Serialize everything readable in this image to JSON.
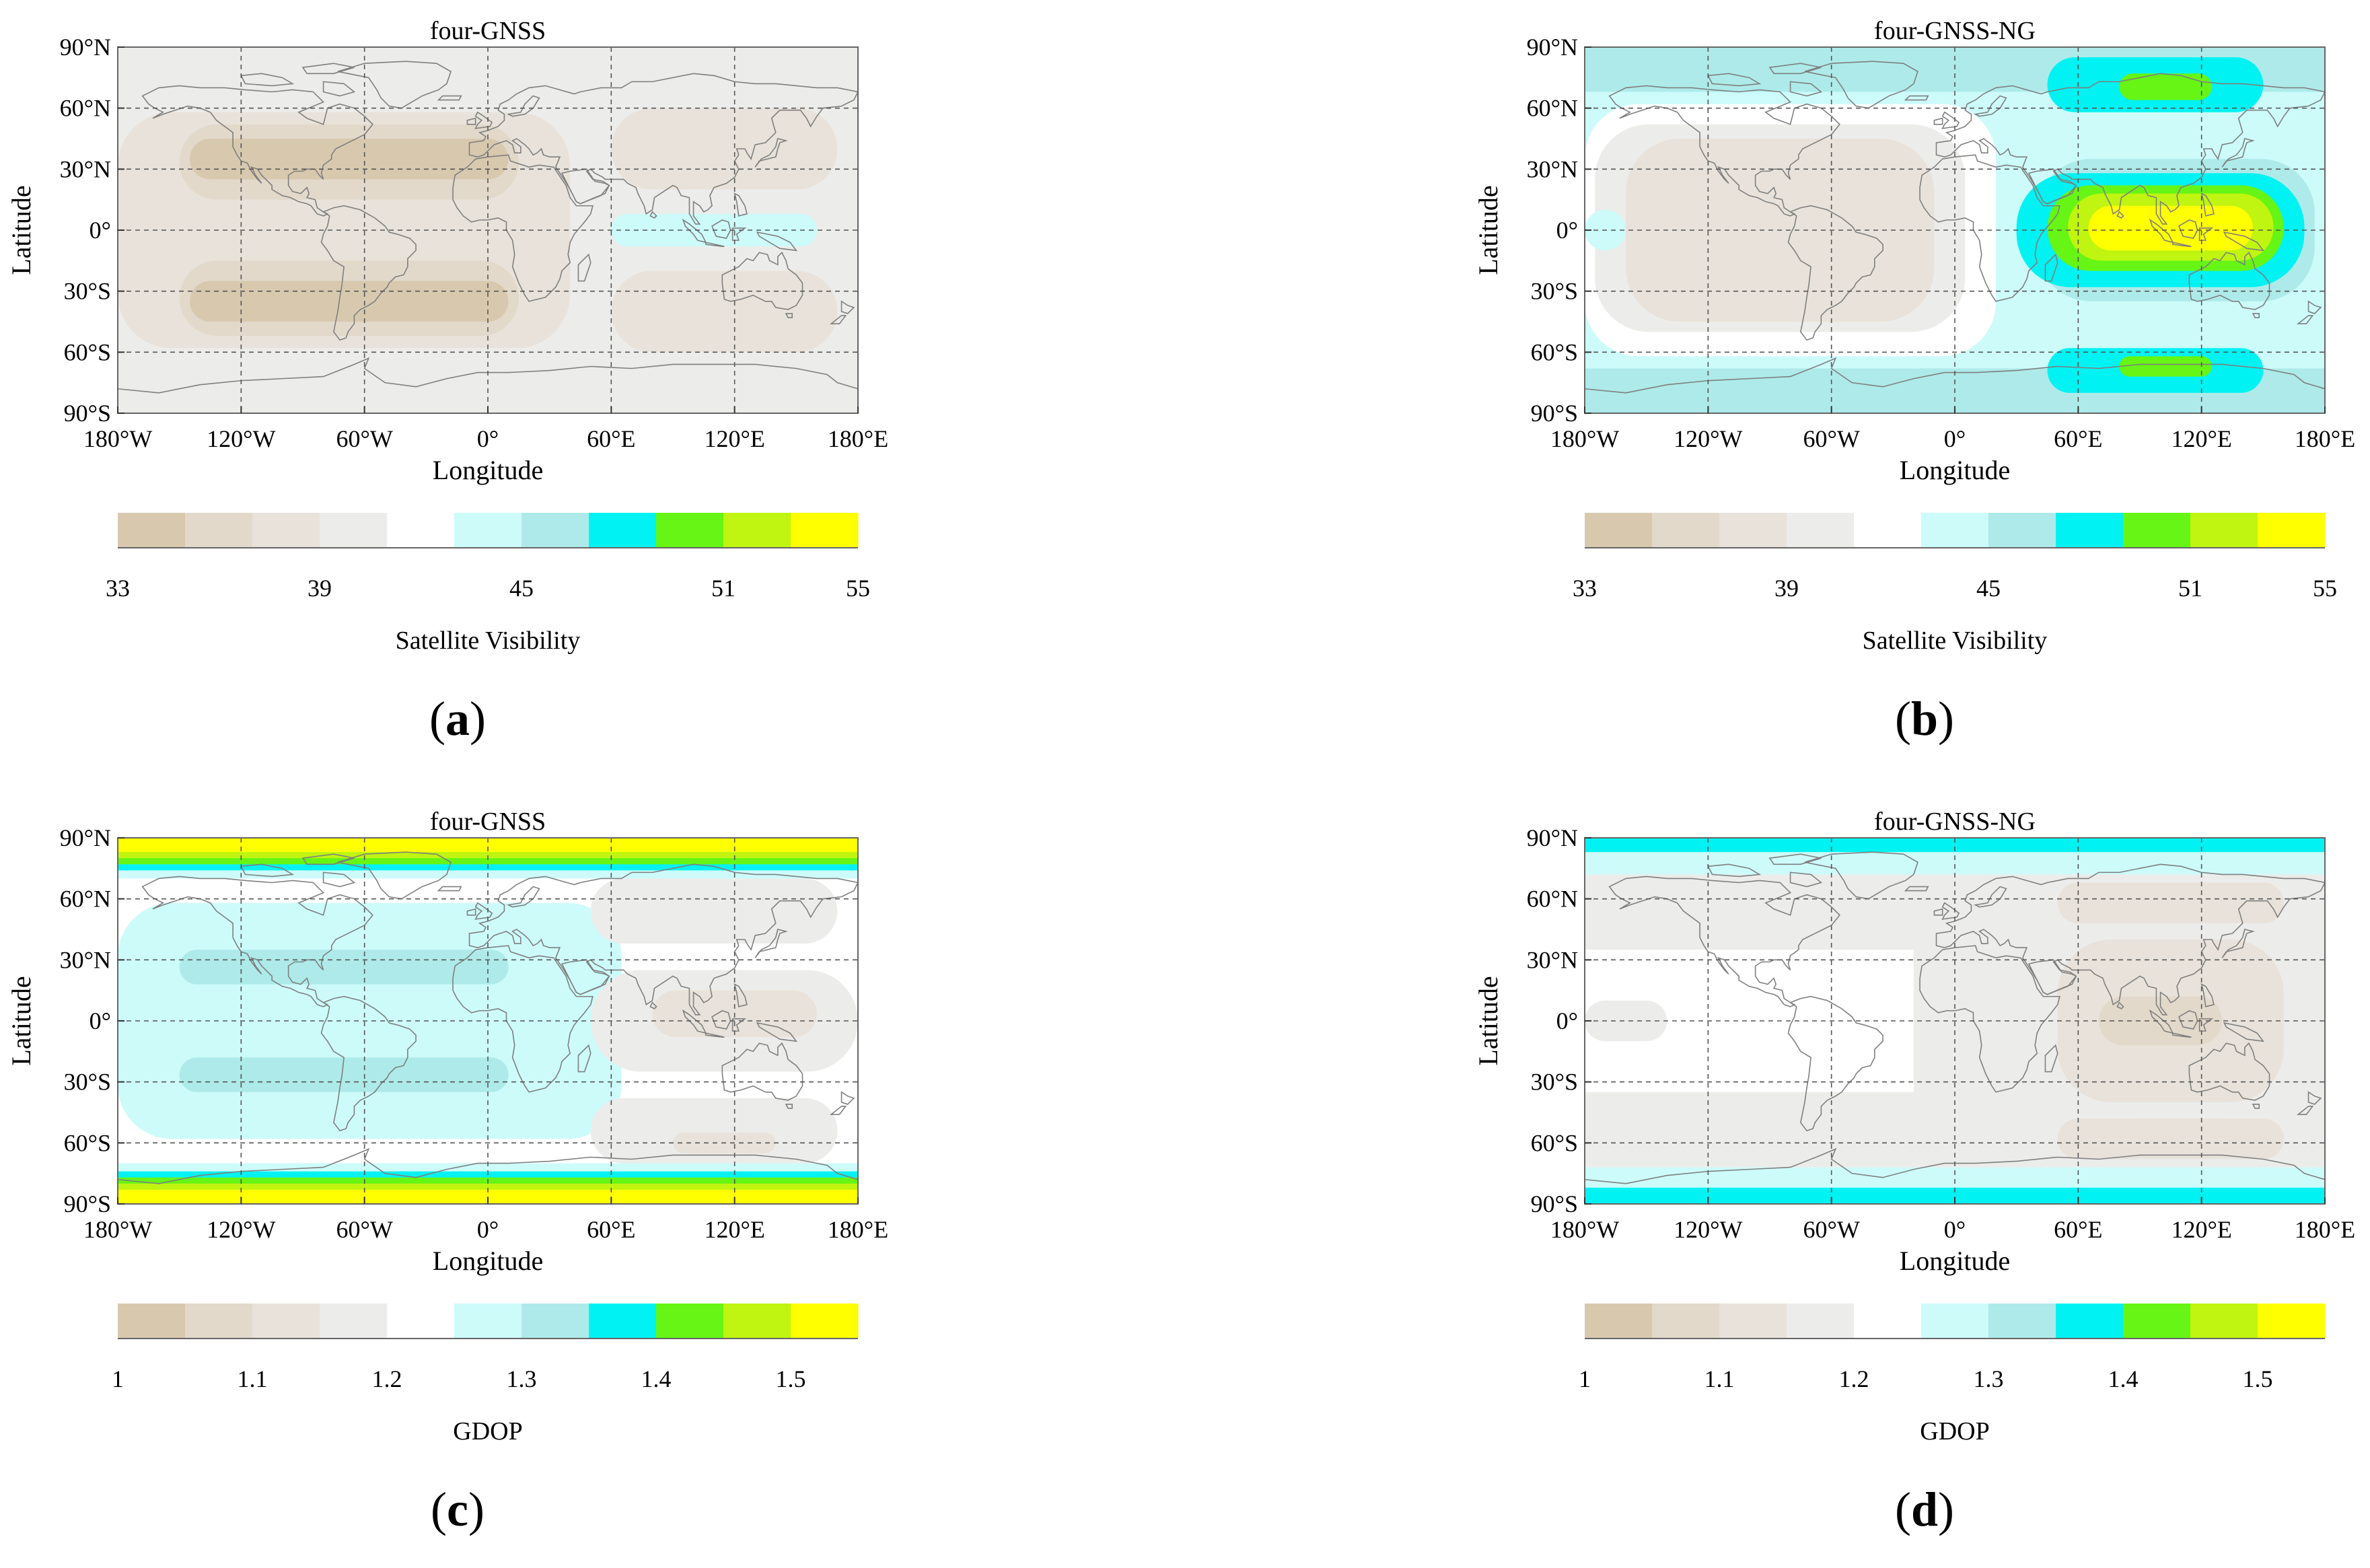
{
  "figure": {
    "panels_layout": "2x2",
    "palette": [
      "#d8c9ae",
      "#e2d9cb",
      "#e8e2da",
      "#ececea",
      "#ffffff",
      "#ccfbfa",
      "#aeeaea",
      "#00f2f2",
      "#66f514",
      "#bff510",
      "#ffff00"
    ]
  },
  "chart_data": [
    {
      "id": "a",
      "panel_label": "(a)",
      "type": "heatmap",
      "title": "four-GNSS",
      "xlabel": "Longitude",
      "ylabel": "Latitude",
      "xlim": [
        -180,
        180
      ],
      "ylim": [
        -90,
        90
      ],
      "xticks": [
        -180,
        -120,
        -60,
        0,
        60,
        120,
        180
      ],
      "xtick_labels": [
        "180°W",
        "120°W",
        "60°W",
        "0°",
        "60°E",
        "120°E",
        "180°E"
      ],
      "yticks": [
        90,
        60,
        30,
        0,
        -30,
        -60,
        -90
      ],
      "ytick_labels": [
        "90°N",
        "60°N",
        "30°N",
        "0°",
        "30°S",
        "60°S",
        "90°S"
      ],
      "grid": true,
      "colorbar": {
        "label": "Satellite Visibility",
        "levels": [
          33,
          35,
          37,
          39,
          41,
          43,
          45,
          47,
          49,
          51,
          53,
          55
        ],
        "tick_values": [
          33,
          39,
          45,
          51,
          55
        ],
        "tick_labels": [
          "33",
          "39",
          "45",
          "51",
          "55"
        ]
      },
      "base_value": 40,
      "regions": [
        {
          "lon": [
            -180,
            45
          ],
          "lat": [
            -90,
            90
          ],
          "value": 39.5
        },
        {
          "lon": [
            -180,
            40
          ],
          "lat": [
            -58,
            58
          ],
          "value": 38
        },
        {
          "lon": [
            -150,
            15
          ],
          "lat": [
            15,
            52
          ],
          "value": 36
        },
        {
          "lon": [
            -150,
            15
          ],
          "lat": [
            -52,
            -15
          ],
          "value": 36
        },
        {
          "lon": [
            -145,
            10
          ],
          "lat": [
            25,
            45
          ],
          "value": 34.8
        },
        {
          "lon": [
            -145,
            10
          ],
          "lat": [
            -45,
            -25
          ],
          "value": 34.8
        },
        {
          "lon": [
            45,
            180
          ],
          "lat": [
            -90,
            -70
          ],
          "value": 40
        },
        {
          "lon": [
            45,
            180
          ],
          "lat": [
            62,
            90
          ],
          "value": 40
        },
        {
          "lon": [
            60,
            170
          ],
          "lat": [
            20,
            60
          ],
          "value": 38
        },
        {
          "lon": [
            60,
            170
          ],
          "lat": [
            -60,
            -20
          ],
          "value": 38
        },
        {
          "lon": [
            60,
            160
          ],
          "lat": [
            -8,
            8
          ],
          "value": 43.5
        }
      ]
    },
    {
      "id": "b",
      "panel_label": "(b)",
      "type": "heatmap",
      "title": "four-GNSS-NG",
      "xlabel": "Longitude",
      "ylabel": "Latitude",
      "xlim": [
        -180,
        180
      ],
      "ylim": [
        -90,
        90
      ],
      "xticks": [
        -180,
        -120,
        -60,
        0,
        60,
        120,
        180
      ],
      "xtick_labels": [
        "180°W",
        "120°W",
        "60°W",
        "0°",
        "60°E",
        "120°E",
        "180°E"
      ],
      "yticks": [
        90,
        60,
        30,
        0,
        -30,
        -60,
        -90
      ],
      "ytick_labels": [
        "90°N",
        "60°N",
        "30°N",
        "0°",
        "30°S",
        "60°S",
        "90°S"
      ],
      "grid": true,
      "colorbar": {
        "label": "Satellite Visibility",
        "levels": [
          33,
          35,
          37,
          39,
          41,
          43,
          45,
          47,
          49,
          51,
          53,
          55
        ],
        "tick_values": [
          33,
          39,
          45,
          51,
          55
        ],
        "tick_labels": [
          "33",
          "39",
          "45",
          "51",
          "55"
        ]
      },
      "base_value": 46,
      "regions": [
        {
          "lon": [
            -180,
            180
          ],
          "lat": [
            -68,
            68
          ],
          "value": 43.5
        },
        {
          "lon": [
            -180,
            20
          ],
          "lat": [
            -62,
            62
          ],
          "value": 41.5
        },
        {
          "lon": [
            -175,
            5
          ],
          "lat": [
            -50,
            52
          ],
          "value": 39.5
        },
        {
          "lon": [
            -160,
            -10
          ],
          "lat": [
            -45,
            45
          ],
          "value": 38
        },
        {
          "lon": [
            -180,
            -160
          ],
          "lat": [
            -10,
            10
          ],
          "value": 43.5
        },
        {
          "lon": [
            25,
            180
          ],
          "lat": [
            -55,
            55
          ],
          "value": 43.5
        },
        {
          "lon": [
            40,
            175
          ],
          "lat": [
            -35,
            35
          ],
          "value": 45.5
        },
        {
          "lon": [
            30,
            170
          ],
          "lat": [
            -28,
            28
          ],
          "value": 47.5
        },
        {
          "lon": [
            45,
            160
          ],
          "lat": [
            -20,
            22
          ],
          "value": 49.5
        },
        {
          "lon": [
            55,
            155
          ],
          "lat": [
            -15,
            18
          ],
          "value": 51.5
        },
        {
          "lon": [
            65,
            145
          ],
          "lat": [
            -10,
            12
          ],
          "value": 53
        },
        {
          "lon": [
            45,
            150
          ],
          "lat": [
            58,
            85
          ],
          "value": 47.5
        },
        {
          "lon": [
            80,
            125
          ],
          "lat": [
            64,
            77
          ],
          "value": 49.5
        },
        {
          "lon": [
            45,
            150
          ],
          "lat": [
            -80,
            -58
          ],
          "value": 47.5
        },
        {
          "lon": [
            80,
            125
          ],
          "lat": [
            -72,
            -62
          ],
          "value": 49.5
        }
      ]
    },
    {
      "id": "c",
      "panel_label": "(c)",
      "type": "heatmap",
      "title": "four-GNSS",
      "xlabel": "Longitude",
      "ylabel": "Latitude",
      "xlim": [
        -180,
        180
      ],
      "ylim": [
        -90,
        90
      ],
      "xticks": [
        -180,
        -120,
        -60,
        0,
        60,
        120,
        180
      ],
      "xtick_labels": [
        "180°W",
        "120°W",
        "60°W",
        "0°",
        "60°E",
        "120°E",
        "180°E"
      ],
      "yticks": [
        90,
        60,
        30,
        0,
        -30,
        -60,
        -90
      ],
      "ytick_labels": [
        "90°N",
        "60°N",
        "30°N",
        "0°",
        "30°S",
        "60°S",
        "90°S"
      ],
      "grid": true,
      "colorbar": {
        "label": "GDOP",
        "levels": [
          1,
          1.05,
          1.1,
          1.15,
          1.2,
          1.25,
          1.3,
          1.35,
          1.4,
          1.45,
          1.5,
          1.55
        ],
        "tick_values": [
          1,
          1.1,
          1.2,
          1.3,
          1.4,
          1.5
        ],
        "tick_labels": [
          "1",
          "1.1",
          "1.2",
          "1.3",
          "1.4",
          "1.5"
        ]
      },
      "base_value": 1.22,
      "regions": [
        {
          "lon": [
            -180,
            65
          ],
          "lat": [
            -58,
            58
          ],
          "value": 1.27
        },
        {
          "lon": [
            -150,
            10
          ],
          "lat": [
            18,
            35
          ],
          "value": 1.32
        },
        {
          "lon": [
            -150,
            10
          ],
          "lat": [
            -35,
            -18
          ],
          "value": 1.32
        },
        {
          "lon": [
            50,
            180
          ],
          "lat": [
            -25,
            25
          ],
          "value": 1.18
        },
        {
          "lon": [
            80,
            160
          ],
          "lat": [
            -8,
            15
          ],
          "value": 1.13
        },
        {
          "lon": [
            50,
            170
          ],
          "lat": [
            38,
            70
          ],
          "value": 1.18
        },
        {
          "lon": [
            50,
            170
          ],
          "lat": [
            -70,
            -38
          ],
          "value": 1.18
        },
        {
          "lon": [
            90,
            140
          ],
          "lat": [
            -65,
            -55
          ],
          "value": 1.13
        },
        {
          "lon": [
            -180,
            180
          ],
          "lat": [
            70,
            90
          ],
          "value": 1.27
        },
        {
          "lon": [
            -180,
            180
          ],
          "lat": [
            74,
            90
          ],
          "value": 1.37
        },
        {
          "lon": [
            -180,
            180
          ],
          "lat": [
            77,
            90
          ],
          "value": 1.42
        },
        {
          "lon": [
            -180,
            180
          ],
          "lat": [
            80,
            90
          ],
          "value": 1.47
        },
        {
          "lon": [
            -180,
            180
          ],
          "lat": [
            83,
            90
          ],
          "value": 1.53
        },
        {
          "lon": [
            -180,
            180
          ],
          "lat": [
            -90,
            -70
          ],
          "value": 1.27
        },
        {
          "lon": [
            -180,
            180
          ],
          "lat": [
            -90,
            -74
          ],
          "value": 1.37
        },
        {
          "lon": [
            -180,
            180
          ],
          "lat": [
            -90,
            -77
          ],
          "value": 1.42
        },
        {
          "lon": [
            -180,
            180
          ],
          "lat": [
            -90,
            -80
          ],
          "value": 1.47
        },
        {
          "lon": [
            -180,
            180
          ],
          "lat": [
            -90,
            -83
          ],
          "value": 1.53
        }
      ]
    },
    {
      "id": "d",
      "panel_label": "(d)",
      "type": "heatmap",
      "title": "four-GNSS-NG",
      "xlabel": "Longitude",
      "ylabel": "Latitude",
      "xlim": [
        -180,
        180
      ],
      "ylim": [
        -90,
        90
      ],
      "xticks": [
        -180,
        -120,
        -60,
        0,
        60,
        120,
        180
      ],
      "xtick_labels": [
        "180°W",
        "120°W",
        "60°W",
        "0°",
        "60°E",
        "120°E",
        "180°E"
      ],
      "yticks": [
        90,
        60,
        30,
        0,
        -30,
        -60,
        -90
      ],
      "ytick_labels": [
        "90°N",
        "60°N",
        "30°N",
        "0°",
        "30°S",
        "60°S",
        "90°S"
      ],
      "grid": true,
      "colorbar": {
        "label": "GDOP",
        "levels": [
          1,
          1.05,
          1.1,
          1.15,
          1.2,
          1.25,
          1.3,
          1.35,
          1.4,
          1.45,
          1.5,
          1.55
        ],
        "tick_values": [
          1,
          1.1,
          1.2,
          1.3,
          1.4,
          1.5
        ],
        "tick_labels": [
          "1",
          "1.1",
          "1.2",
          "1.3",
          "1.4",
          "1.5"
        ]
      },
      "base_value": 1.22,
      "regions": [
        {
          "lon": [
            -180,
            180
          ],
          "lat": [
            35,
            72
          ],
          "value": 1.18
        },
        {
          "lon": [
            -180,
            180
          ],
          "lat": [
            -72,
            -35
          ],
          "value": 1.18
        },
        {
          "lon": [
            -180,
            -140
          ],
          "lat": [
            -10,
            10
          ],
          "value": 1.18
        },
        {
          "lon": [
            -20,
            180
          ],
          "lat": [
            -72,
            72
          ],
          "value": 1.18
        },
        {
          "lon": [
            50,
            160
          ],
          "lat": [
            -40,
            40
          ],
          "value": 1.13
        },
        {
          "lon": [
            70,
            130
          ],
          "lat": [
            -12,
            12
          ],
          "value": 1.08
        },
        {
          "lon": [
            50,
            160
          ],
          "lat": [
            48,
            68
          ],
          "value": 1.13
        },
        {
          "lon": [
            50,
            160
          ],
          "lat": [
            -68,
            -48
          ],
          "value": 1.13
        },
        {
          "lon": [
            -180,
            180
          ],
          "lat": [
            72,
            90
          ],
          "value": 1.27
        },
        {
          "lon": [
            -180,
            180
          ],
          "lat": [
            83,
            90
          ],
          "value": 1.37
        },
        {
          "lon": [
            -180,
            180
          ],
          "lat": [
            -90,
            -72
          ],
          "value": 1.27
        },
        {
          "lon": [
            -180,
            180
          ],
          "lat": [
            -90,
            -82
          ],
          "value": 1.37
        }
      ]
    }
  ]
}
